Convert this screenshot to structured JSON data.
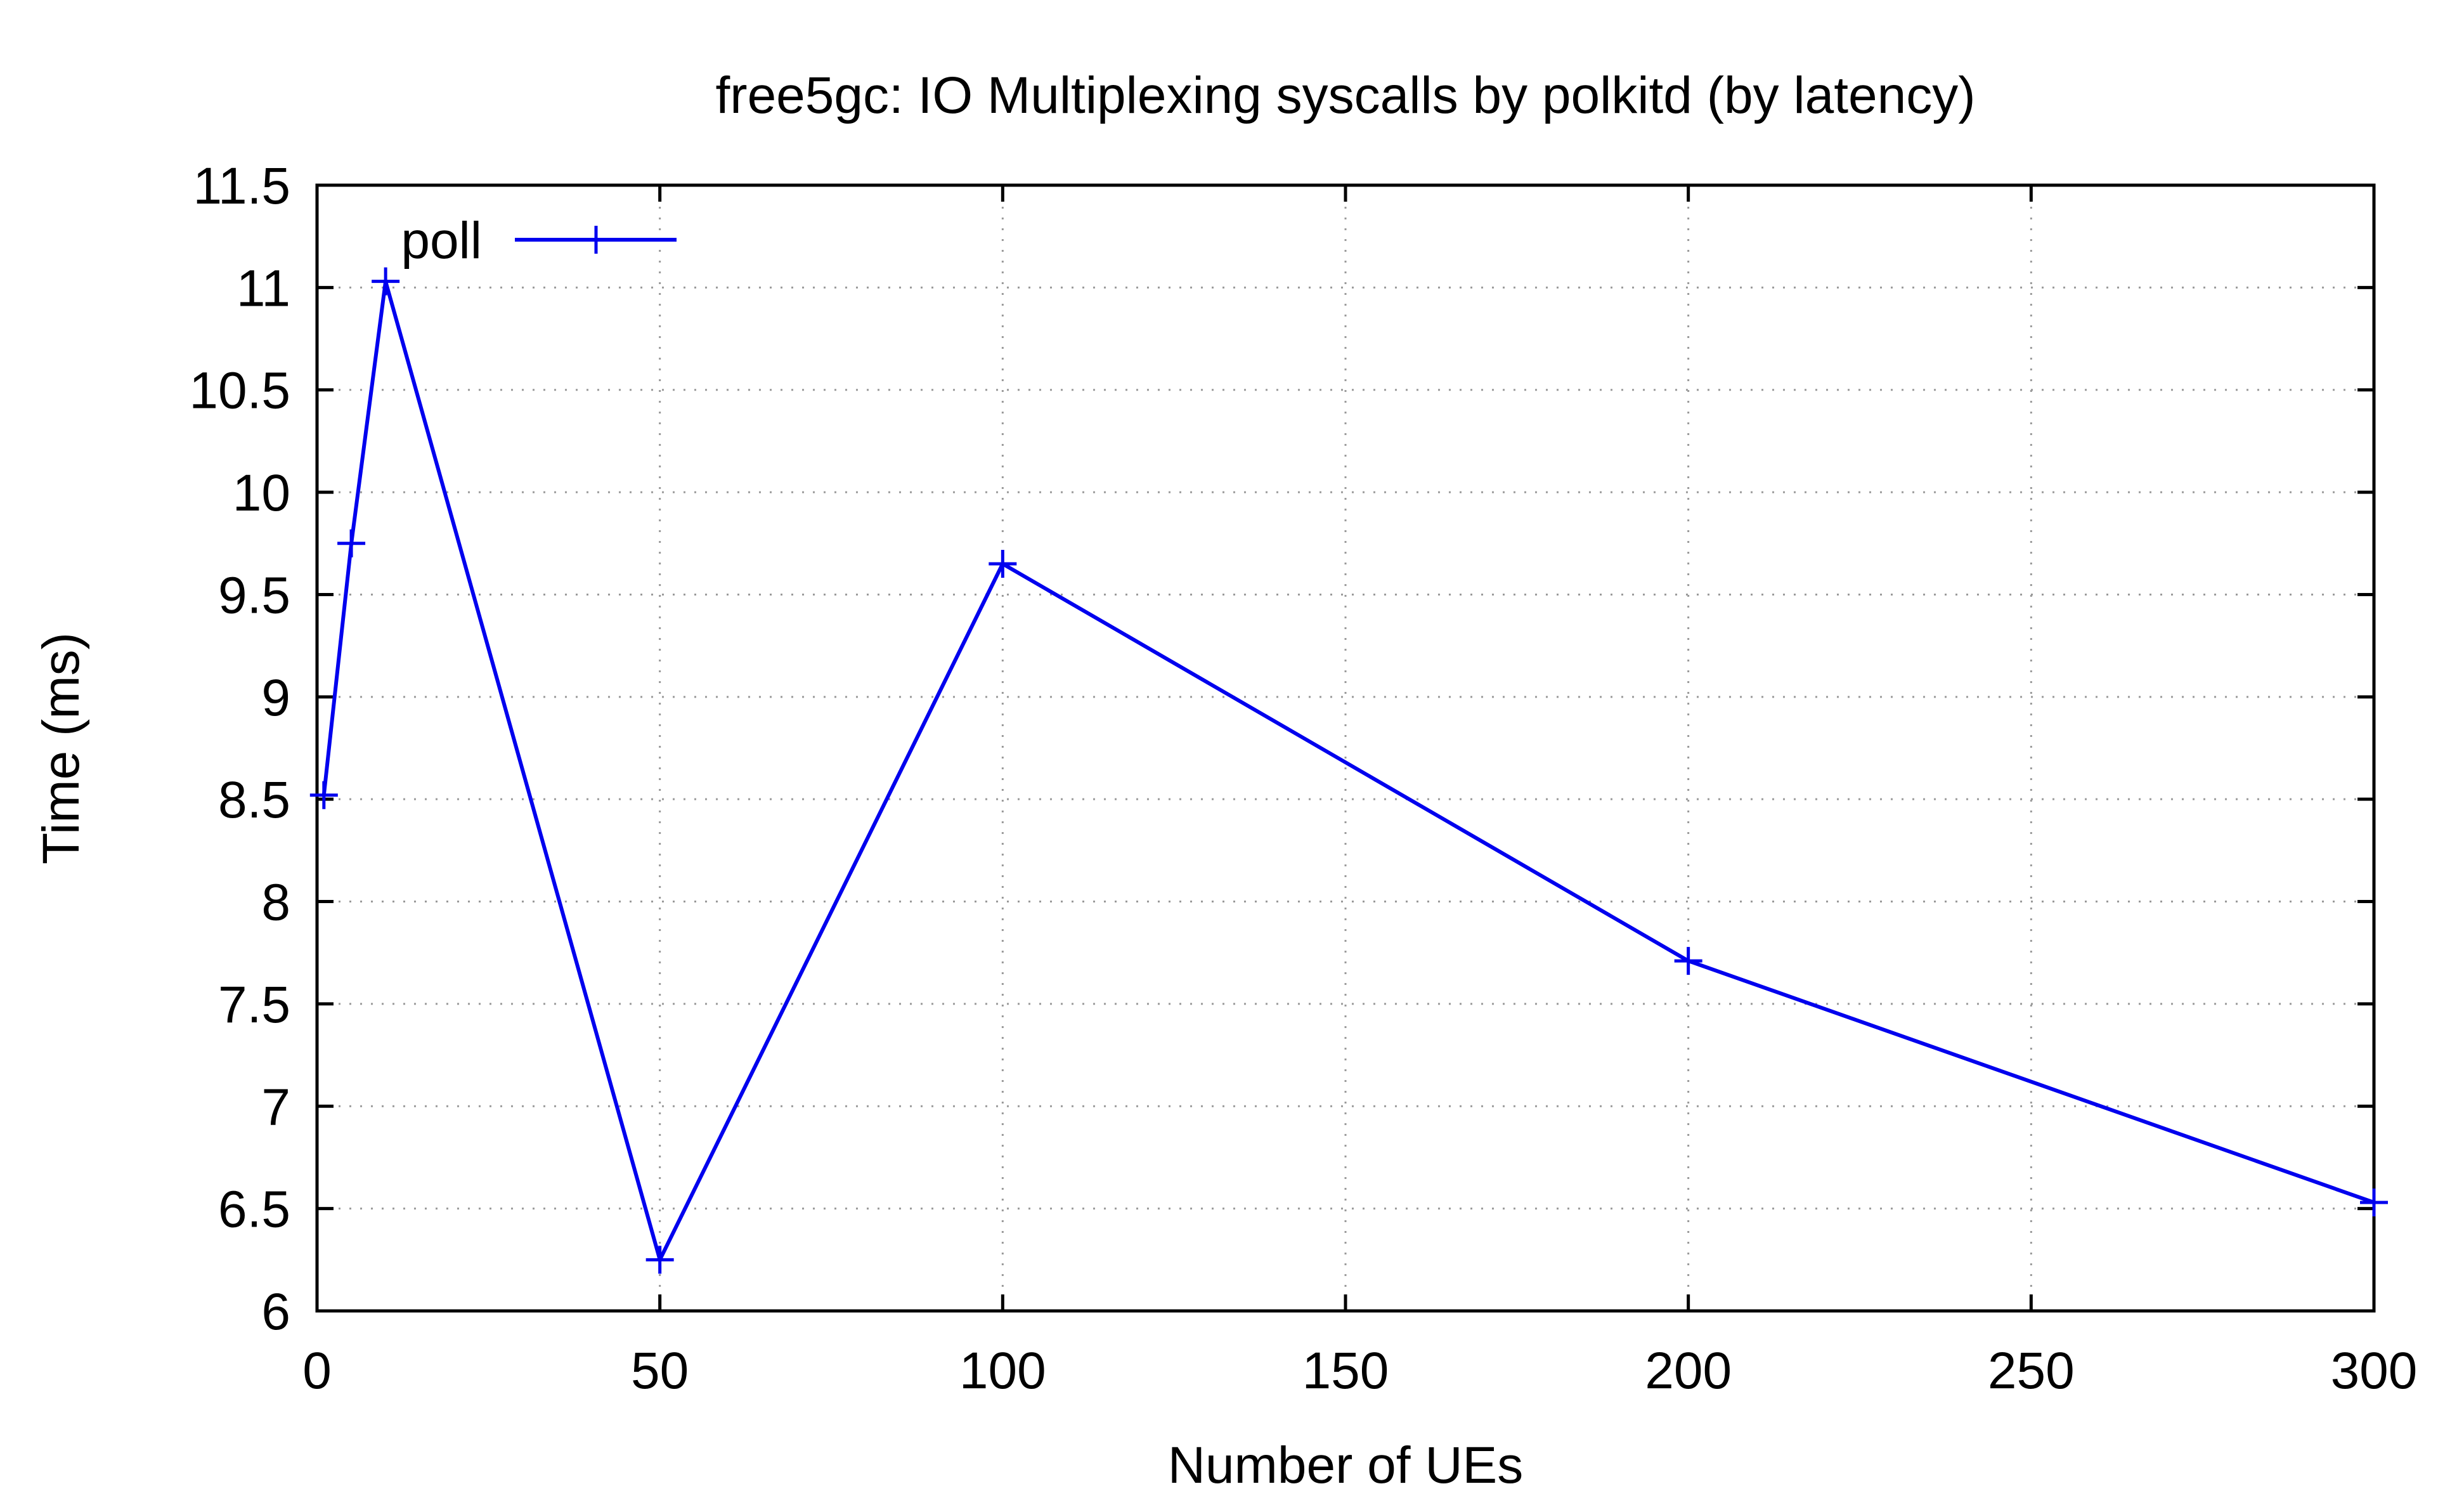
{
  "chart_data": {
    "type": "line",
    "title": "free5gc: IO Multiplexing syscalls by polkitd (by latency)",
    "xlabel": "Number of UEs",
    "ylabel": "Time (ms)",
    "xlim": [
      0,
      300
    ],
    "ylim": [
      6,
      11.5
    ],
    "xticks": [
      0,
      50,
      100,
      150,
      200,
      250,
      300
    ],
    "yticks": [
      6,
      6.5,
      7,
      7.5,
      8,
      8.5,
      9,
      9.5,
      10,
      10.5,
      11,
      11.5
    ],
    "grid": true,
    "legend": "top-left",
    "series": [
      {
        "name": "poll",
        "color": "#0000ee",
        "marker": "plus",
        "x": [
          1,
          5,
          10,
          50,
          100,
          200,
          300
        ],
        "y": [
          8.52,
          9.75,
          11.03,
          6.25,
          9.65,
          7.71,
          6.53
        ]
      }
    ]
  }
}
